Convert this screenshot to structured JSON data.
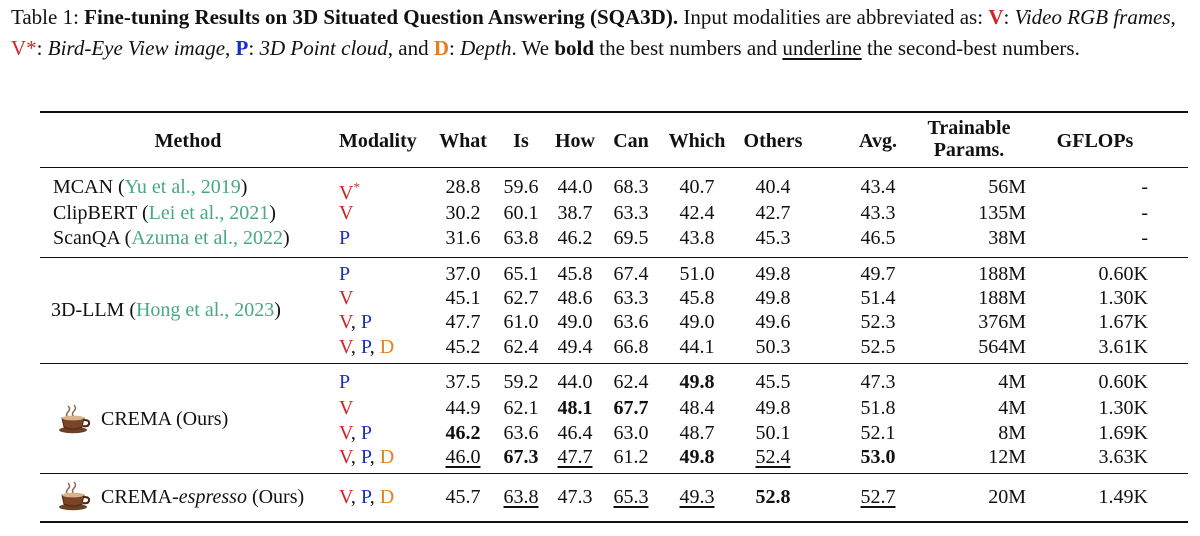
{
  "caption": {
    "table_label": "Table 1:",
    "title": "Fine-tuning Results on 3D Situated Question Answering (SQA3D).",
    "intro": " Input modalities are abbreviated as: ",
    "v_code": "V",
    "v_desc": "Video RGB frames",
    "vstar_code": "V*",
    "vstar_desc": "Bird-Eye View image",
    "p_code": "P",
    "p_desc": "3D Point cloud",
    "and_text": ", and ",
    "d_code": "D",
    "d_desc": "Depth",
    "tail1": ". We ",
    "bold_word": "bold",
    "tail2": " the best numbers and ",
    "underline_word": "underline",
    "tail3": " the second-best numbers."
  },
  "colors": {
    "V": "#d22424",
    "P": "#1a2ec2",
    "D": "#e8801e",
    "cite": "#46a982"
  },
  "headers": [
    "Method",
    "Modality",
    "What",
    "Is",
    "How",
    "Can",
    "Which",
    "Others",
    "Avg.",
    "Trainable Params.",
    "GFLOPs"
  ],
  "groups": [
    {
      "rows": [
        {
          "method": "MCAN",
          "cite_authors": "Yu et al.",
          "cite_year": "2019",
          "modality": [
            "V*"
          ],
          "vals": [
            "28.8",
            "59.6",
            "44.0",
            "68.3",
            "40.7",
            "40.4"
          ],
          "avg": "43.4",
          "params": "56M",
          "gflops": "-"
        },
        {
          "method": "ClipBERT",
          "cite_authors": "Lei et al.",
          "cite_year": "2021",
          "modality": [
            "V"
          ],
          "vals": [
            "30.2",
            "60.1",
            "38.7",
            "63.3",
            "42.4",
            "42.7"
          ],
          "avg": "43.3",
          "params": "135M",
          "gflops": "-"
        },
        {
          "method": "ScanQA",
          "cite_authors": "Azuma et al.",
          "cite_year": "2022",
          "modality": [
            "P"
          ],
          "vals": [
            "31.6",
            "63.8",
            "46.2",
            "69.5",
            "43.8",
            "45.3"
          ],
          "avg": "46.5",
          "params": "38M",
          "gflops": "-"
        }
      ]
    },
    {
      "method": "3D-LLM",
      "cite_authors": "Hong et al.",
      "cite_year": "2023",
      "rows": [
        {
          "modality": [
            "P"
          ],
          "vals": [
            "37.0",
            "65.1",
            "45.8",
            "67.4",
            "51.0",
            "49.8"
          ],
          "avg": "49.7",
          "params": "188M",
          "gflops": "0.60K"
        },
        {
          "modality": [
            "V"
          ],
          "vals": [
            "45.1",
            "62.7",
            "48.6",
            "63.3",
            "45.8",
            "49.8"
          ],
          "avg": "51.4",
          "params": "188M",
          "gflops": "1.30K"
        },
        {
          "modality": [
            "V",
            "P"
          ],
          "vals": [
            "47.7",
            "61.0",
            "49.0",
            "63.6",
            "49.0",
            "49.6"
          ],
          "avg": "52.3",
          "params": "376M",
          "gflops": "1.67K"
        },
        {
          "modality": [
            "V",
            "P",
            "D"
          ],
          "vals": [
            "45.2",
            "62.4",
            "49.4",
            "66.8",
            "44.1",
            "50.3"
          ],
          "avg": "52.5",
          "params": "564M",
          "gflops": "3.61K"
        }
      ]
    },
    {
      "method": "CREMA (Ours)",
      "rows": [
        {
          "modality": [
            "P"
          ],
          "vals": [
            "37.5",
            "59.2",
            "44.0",
            "62.4",
            "49.8",
            "45.5"
          ],
          "avg": "47.3",
          "params": "4M",
          "gflops": "0.60K",
          "bold": [
            4
          ],
          "underline": []
        },
        {
          "modality": [
            "V"
          ],
          "vals": [
            "44.9",
            "62.1",
            "48.1",
            "67.7",
            "48.4",
            "49.8"
          ],
          "avg": "51.8",
          "params": "4M",
          "gflops": "1.30K",
          "bold": [
            2,
            3
          ],
          "underline": []
        },
        {
          "modality": [
            "V",
            "P"
          ],
          "vals": [
            "46.2",
            "63.6",
            "46.4",
            "63.0",
            "48.7",
            "50.1"
          ],
          "avg": "52.1",
          "params": "8M",
          "gflops": "1.69K",
          "bold": [
            0
          ],
          "underline": []
        },
        {
          "modality": [
            "V",
            "P",
            "D"
          ],
          "vals": [
            "46.0",
            "67.3",
            "47.7",
            "61.2",
            "49.8",
            "52.4"
          ],
          "avg": "53.0",
          "params": "12M",
          "gflops": "3.63K",
          "bold": [
            1,
            4,
            6
          ],
          "underline": [
            0,
            2,
            5
          ]
        }
      ]
    },
    {
      "rows": [
        {
          "method_prefix": "CREMA-",
          "method_italic": "espresso",
          "method_suffix": " (Ours)",
          "modality": [
            "V",
            "P",
            "D"
          ],
          "vals": [
            "45.7",
            "63.8",
            "47.3",
            "65.3",
            "49.3",
            "52.8"
          ],
          "avg": "52.7",
          "params": "20M",
          "gflops": "1.49K",
          "bold": [
            5
          ],
          "underline": [
            1,
            3,
            4,
            6
          ]
        }
      ]
    }
  ]
}
